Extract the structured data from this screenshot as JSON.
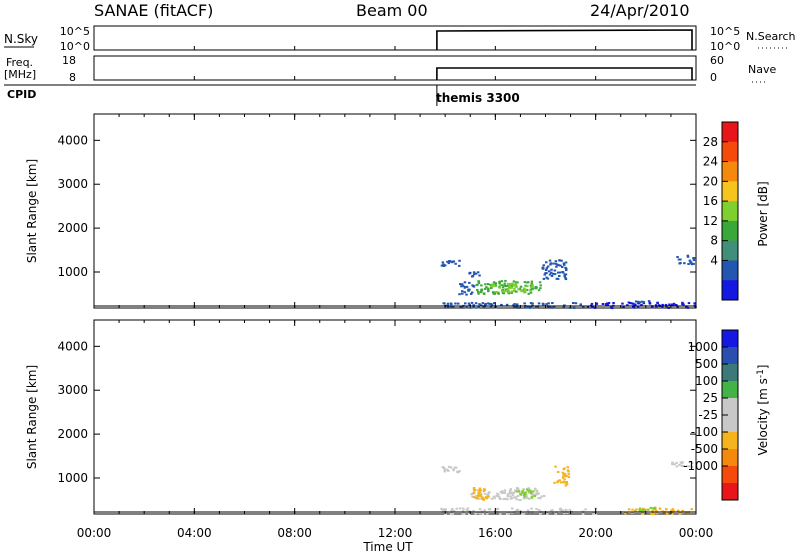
{
  "header": {
    "station": "SANAE (fitACF)",
    "beam": "Beam 00",
    "date": "24/Apr/2010"
  },
  "top_panels": {
    "nsky_label": "N.Sky",
    "nsky_ticks": [
      "10^5",
      "10^0"
    ],
    "nsearch_label": "N.Search",
    "nsearch_ticks": [
      "10^5",
      "10^0"
    ],
    "freq_label_line1": "Freq.",
    "freq_label_line2": "[MHz]",
    "freq_ticks": [
      "18",
      "8"
    ],
    "nave_label": "Nave",
    "nave_ticks": [
      "60",
      "0"
    ],
    "cpid_label": "CPID",
    "cpid_name": "themis 3300",
    "data_start_hour": 13.67
  },
  "x_axis": {
    "label": "Time UT",
    "ticks": [
      "00:00",
      "04:00",
      "08:00",
      "12:00",
      "16:00",
      "20:00",
      "00:00"
    ],
    "tick_hours": [
      0,
      4,
      8,
      12,
      16,
      20,
      24
    ]
  },
  "power_panel": {
    "ylabel": "Slant Range [km]",
    "yticks": [
      "4000",
      "3000",
      "2000",
      "1000"
    ],
    "ytick_values": [
      4000,
      3000,
      2000,
      1000
    ],
    "colorbar_label": "Power [dB]",
    "colorbar_ticks": [
      "28",
      "24",
      "20",
      "16",
      "12",
      "8",
      "4"
    ],
    "colorbar_colors": [
      "#e8161b",
      "#f54a0b",
      "#f5890d",
      "#f5c51e",
      "#7fcf2e",
      "#39a839",
      "#3f8f7a",
      "#2356b0",
      "#1418e0"
    ]
  },
  "velocity_panel": {
    "ylabel": "Slant Range [km]",
    "yticks": [
      "4000",
      "3000",
      "2000",
      "1000"
    ],
    "ytick_values": [
      4000,
      3000,
      2000,
      1000
    ],
    "colorbar_label": "Velocity [m s^-1]",
    "colorbar_ticks": [
      "1000",
      "500",
      "100",
      "25",
      "-25",
      "-100",
      "-500",
      "-1000"
    ],
    "colorbar_colors": [
      "#1418e0",
      "#2a4fb0",
      "#3c7a7a",
      "#43b347",
      "#c8c8c8",
      "#c8c8c8",
      "#f5b31d",
      "#f5890d",
      "#f54a0b",
      "#e8161b"
    ]
  },
  "chart_data": {
    "type": "heatmap",
    "x_range_hours": [
      0,
      24
    ],
    "y_range_km": [
      180,
      4600
    ],
    "power_scatter": [
      {
        "h": [
          13.8,
          14.6
        ],
        "km": [
          1150,
          1300
        ],
        "color": "#2356b0"
      },
      {
        "h": [
          14.5,
          15.1
        ],
        "km": [
          500,
          800
        ],
        "color": "#2356b0"
      },
      {
        "h": [
          15.2,
          17.8
        ],
        "km": [
          520,
          820
        ],
        "color": "#39a839"
      },
      {
        "h": [
          15.8,
          17.5
        ],
        "km": [
          560,
          760
        ],
        "color": "#7fcf2e"
      },
      {
        "h": [
          14.9,
          15.4
        ],
        "km": [
          880,
          1050
        ],
        "color": "#2356b0"
      },
      {
        "h": [
          17.8,
          18.8
        ],
        "km": [
          850,
          1300
        ],
        "color": "#2356b0"
      },
      {
        "h": [
          13.8,
          19.5
        ],
        "km": [
          200,
          320
        ],
        "color": "#2356b0"
      },
      {
        "h": [
          19.6,
          24.0
        ],
        "km": [
          200,
          330
        ],
        "color": "#1418e0"
      },
      {
        "h": [
          21.5,
          22.2
        ],
        "km": [
          330,
          400
        ],
        "color": "#2356b0"
      },
      {
        "h": [
          23.2,
          23.9
        ],
        "km": [
          1200,
          1400
        ],
        "color": "#2356b0"
      }
    ],
    "velocity_scatter": [
      {
        "h": [
          13.8,
          14.6
        ],
        "km": [
          1150,
          1300
        ],
        "color": "#c8c8c8"
      },
      {
        "h": [
          15.0,
          17.9
        ],
        "km": [
          520,
          800
        ],
        "color": "#c8c8c8"
      },
      {
        "h": [
          15.0,
          15.8
        ],
        "km": [
          520,
          800
        ],
        "color": "#f5b31d"
      },
      {
        "h": [
          16.8,
          17.6
        ],
        "km": [
          560,
          780
        ],
        "color": "#7fcf2e"
      },
      {
        "h": [
          18.3,
          18.9
        ],
        "km": [
          850,
          1300
        ],
        "color": "#f5b31d"
      },
      {
        "h": [
          13.8,
          20.0
        ],
        "km": [
          200,
          330
        ],
        "color": "#c8c8c8"
      },
      {
        "h": [
          21.0,
          23.9
        ],
        "km": [
          200,
          330
        ],
        "color": "#f5b31d"
      },
      {
        "h": [
          21.6,
          22.4
        ],
        "km": [
          260,
          360
        ],
        "color": "#7fcf2e"
      },
      {
        "h": [
          23.0,
          23.8
        ],
        "km": [
          1250,
          1400
        ],
        "color": "#c8c8c8"
      }
    ]
  }
}
